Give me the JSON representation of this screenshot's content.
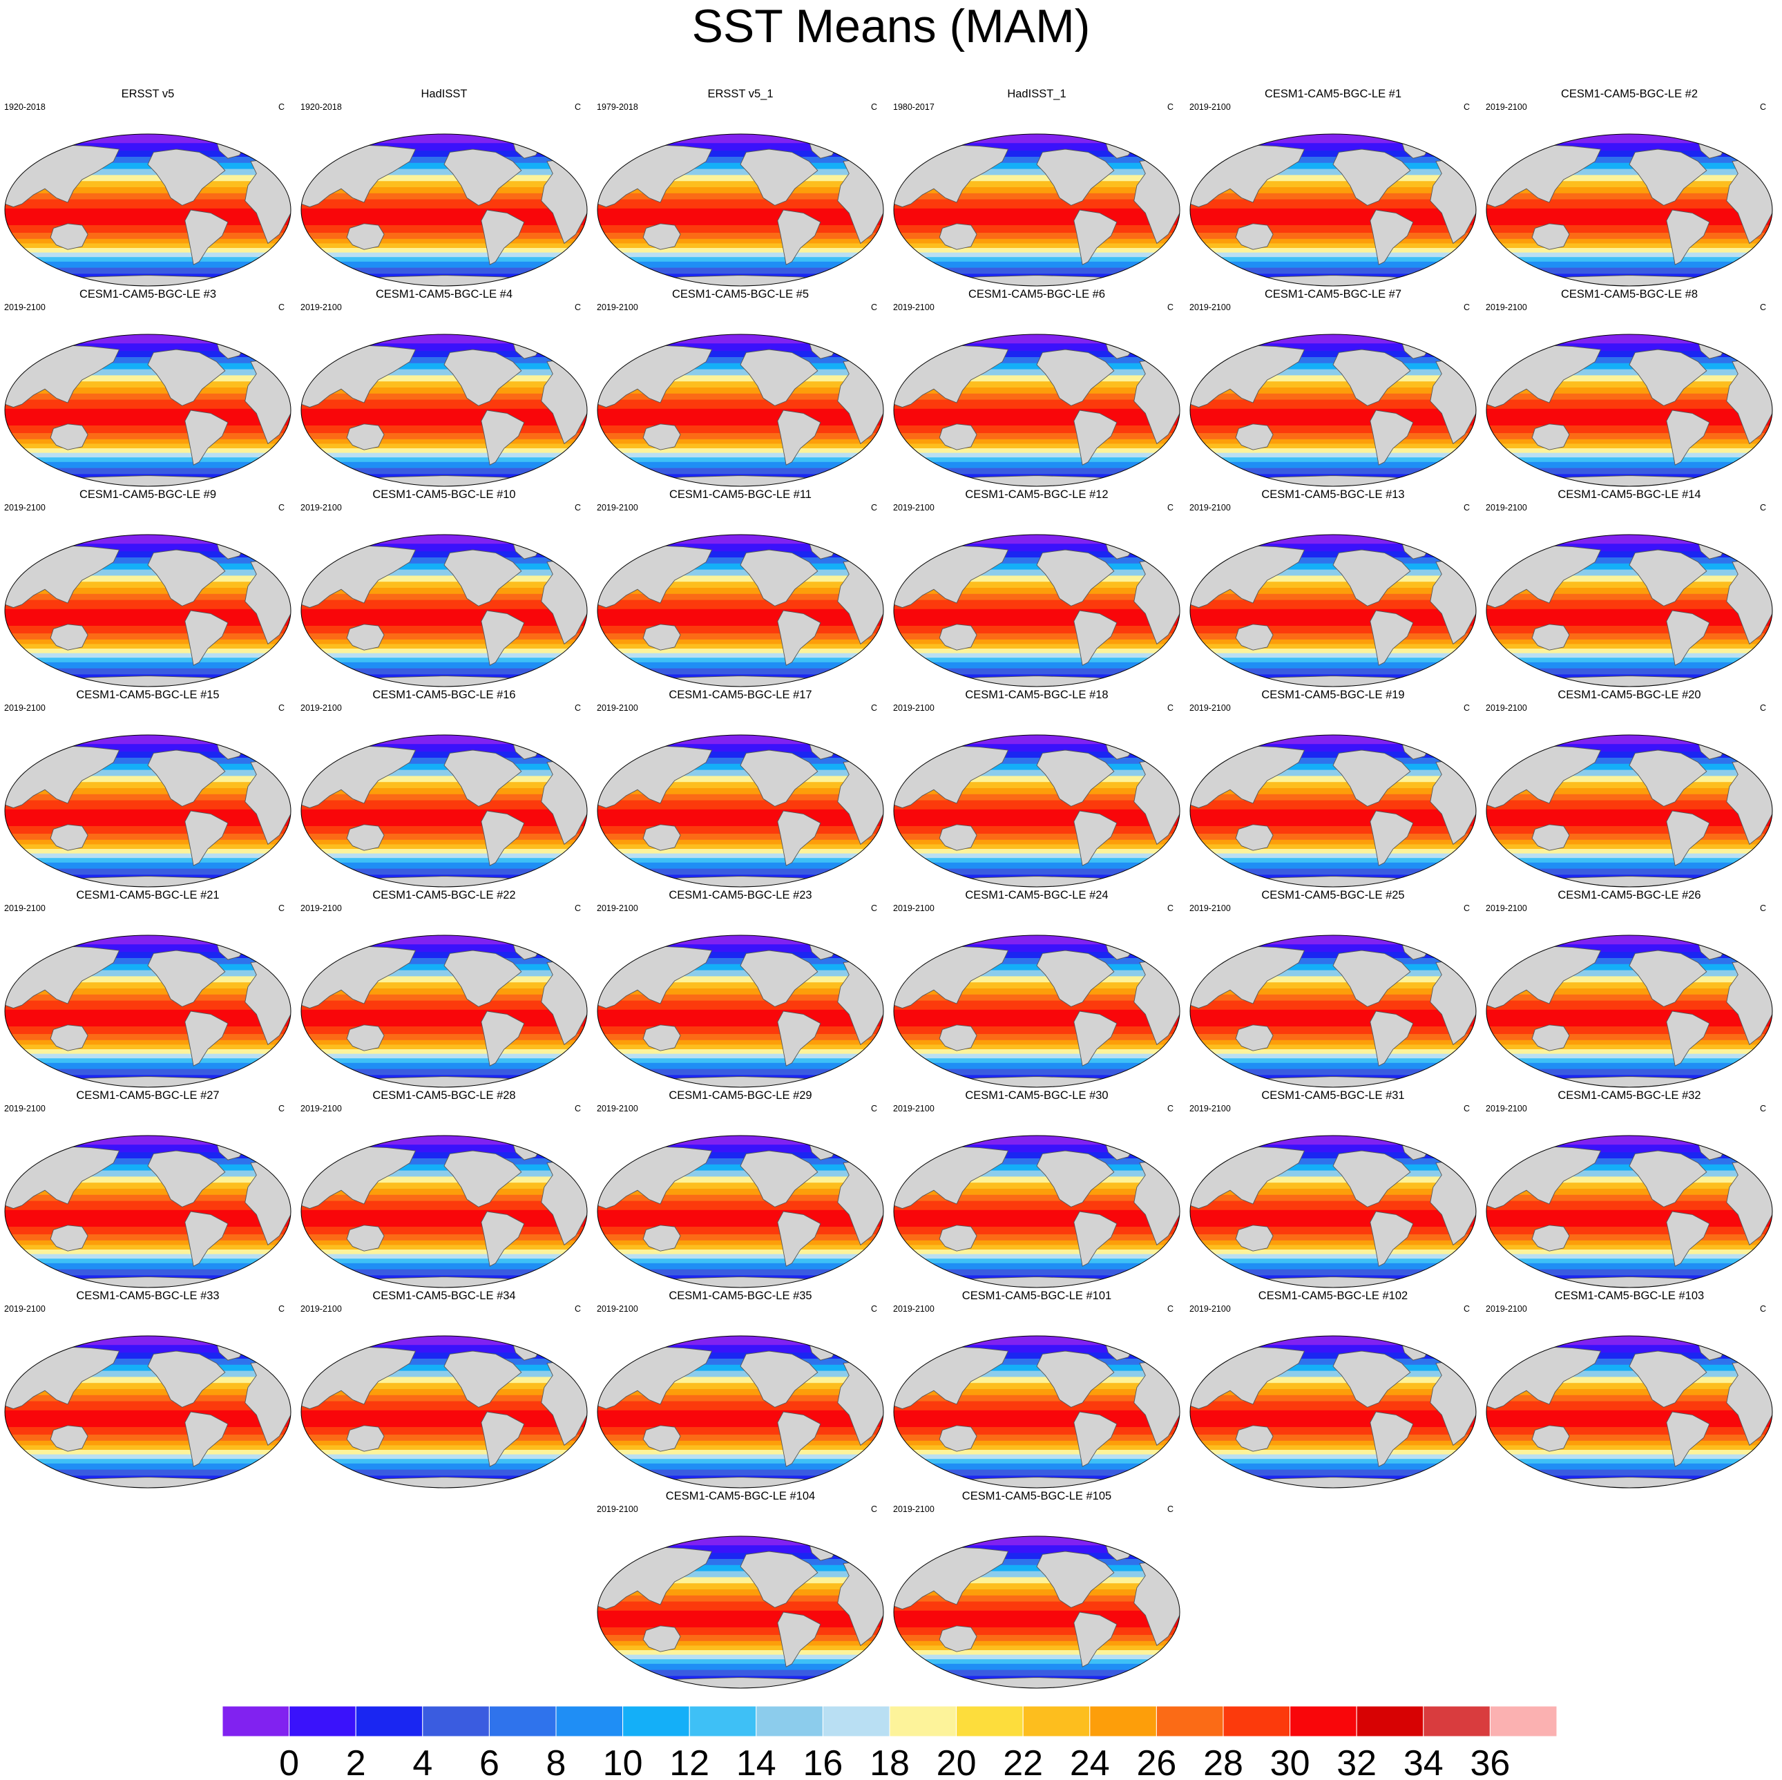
{
  "figure": {
    "title": "SST Means (MAM)",
    "units": "C"
  },
  "panels": [
    {
      "title": "ERSST v5",
      "period": "1920-2018"
    },
    {
      "title": "HadISST",
      "period": "1920-2018"
    },
    {
      "title": "ERSST v5_1",
      "period": "1979-2018"
    },
    {
      "title": "HadISST_1",
      "period": "1980-2017"
    },
    {
      "title": "CESM1-CAM5-BGC-LE #1",
      "period": "2019-2100"
    },
    {
      "title": "CESM1-CAM5-BGC-LE #2",
      "period": "2019-2100"
    },
    {
      "title": "CESM1-CAM5-BGC-LE #3",
      "period": "2019-2100"
    },
    {
      "title": "CESM1-CAM5-BGC-LE #4",
      "period": "2019-2100"
    },
    {
      "title": "CESM1-CAM5-BGC-LE #5",
      "period": "2019-2100"
    },
    {
      "title": "CESM1-CAM5-BGC-LE #6",
      "period": "2019-2100"
    },
    {
      "title": "CESM1-CAM5-BGC-LE #7",
      "period": "2019-2100"
    },
    {
      "title": "CESM1-CAM5-BGC-LE #8",
      "period": "2019-2100"
    },
    {
      "title": "CESM1-CAM5-BGC-LE #9",
      "period": "2019-2100"
    },
    {
      "title": "CESM1-CAM5-BGC-LE #10",
      "period": "2019-2100"
    },
    {
      "title": "CESM1-CAM5-BGC-LE #11",
      "period": "2019-2100"
    },
    {
      "title": "CESM1-CAM5-BGC-LE #12",
      "period": "2019-2100"
    },
    {
      "title": "CESM1-CAM5-BGC-LE #13",
      "period": "2019-2100"
    },
    {
      "title": "CESM1-CAM5-BGC-LE #14",
      "period": "2019-2100"
    },
    {
      "title": "CESM1-CAM5-BGC-LE #15",
      "period": "2019-2100"
    },
    {
      "title": "CESM1-CAM5-BGC-LE #16",
      "period": "2019-2100"
    },
    {
      "title": "CESM1-CAM5-BGC-LE #17",
      "period": "2019-2100"
    },
    {
      "title": "CESM1-CAM5-BGC-LE #18",
      "period": "2019-2100"
    },
    {
      "title": "CESM1-CAM5-BGC-LE #19",
      "period": "2019-2100"
    },
    {
      "title": "CESM1-CAM5-BGC-LE #20",
      "period": "2019-2100"
    },
    {
      "title": "CESM1-CAM5-BGC-LE #21",
      "period": "2019-2100"
    },
    {
      "title": "CESM1-CAM5-BGC-LE #22",
      "period": "2019-2100"
    },
    {
      "title": "CESM1-CAM5-BGC-LE #23",
      "period": "2019-2100"
    },
    {
      "title": "CESM1-CAM5-BGC-LE #24",
      "period": "2019-2100"
    },
    {
      "title": "CESM1-CAM5-BGC-LE #25",
      "period": "2019-2100"
    },
    {
      "title": "CESM1-CAM5-BGC-LE #26",
      "period": "2019-2100"
    },
    {
      "title": "CESM1-CAM5-BGC-LE #27",
      "period": "2019-2100"
    },
    {
      "title": "CESM1-CAM5-BGC-LE #28",
      "period": "2019-2100"
    },
    {
      "title": "CESM1-CAM5-BGC-LE #29",
      "period": "2019-2100"
    },
    {
      "title": "CESM1-CAM5-BGC-LE #30",
      "period": "2019-2100"
    },
    {
      "title": "CESM1-CAM5-BGC-LE #31",
      "period": "2019-2100"
    },
    {
      "title": "CESM1-CAM5-BGC-LE #32",
      "period": "2019-2100"
    },
    {
      "title": "CESM1-CAM5-BGC-LE #33",
      "period": "2019-2100"
    },
    {
      "title": "CESM1-CAM5-BGC-LE #34",
      "period": "2019-2100"
    },
    {
      "title": "CESM1-CAM5-BGC-LE #35",
      "period": "2019-2100"
    },
    {
      "title": "CESM1-CAM5-BGC-LE #101",
      "period": "2019-2100"
    },
    {
      "title": "CESM1-CAM5-BGC-LE #102",
      "period": "2019-2100"
    },
    {
      "title": "CESM1-CAM5-BGC-LE #103",
      "period": "2019-2100"
    },
    {
      "title": "CESM1-CAM5-BGC-LE #104",
      "period": "2019-2100"
    },
    {
      "title": "CESM1-CAM5-BGC-LE #105",
      "period": "2019-2100"
    }
  ],
  "colorbar": {
    "tick_labels": [
      "0",
      "2",
      "4",
      "6",
      "8",
      "10",
      "12",
      "14",
      "16",
      "18",
      "20",
      "22",
      "24",
      "26",
      "28",
      "30",
      "32",
      "34",
      "36"
    ],
    "colors": [
      "#8122f0",
      "#3a12fb",
      "#1a26f2",
      "#3a5ce0",
      "#2f73ec",
      "#1f8ef5",
      "#14aff8",
      "#3ec0f6",
      "#8cccec",
      "#b9dff3",
      "#fdf39a",
      "#fddd3c",
      "#fdbe1e",
      "#fd9e0a",
      "#fb6b16",
      "#fc3a0c",
      "#f9060a",
      "#d70203",
      "#d93c3e",
      "#fbb1b1"
    ]
  },
  "map_style": {
    "land_color": "#d3d3d3",
    "coast_color": "#555555"
  }
}
